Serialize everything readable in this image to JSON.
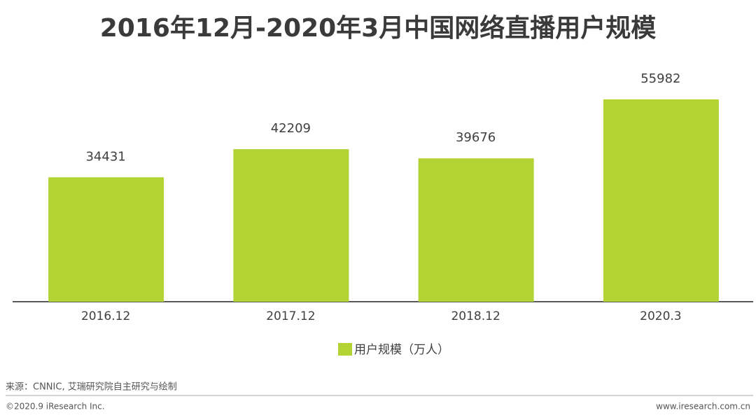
{
  "chart_data": {
    "type": "bar",
    "title": "2016年12月-2020年3月中国网络直播用户规模",
    "categories": [
      "2016.12",
      "2017.12",
      "2018.12",
      "2020.3"
    ],
    "series": [
      {
        "name": "用户规模（万人）",
        "color": "#b3d335",
        "values": [
          34431,
          42209,
          39676,
          55982
        ]
      }
    ],
    "source": "来源：CNNIC, 艾瑞研究院自主研究与绘制",
    "footer_left": "©2020.9 iResearch Inc.",
    "footer_right": "www.iresearch.com.cn"
  }
}
